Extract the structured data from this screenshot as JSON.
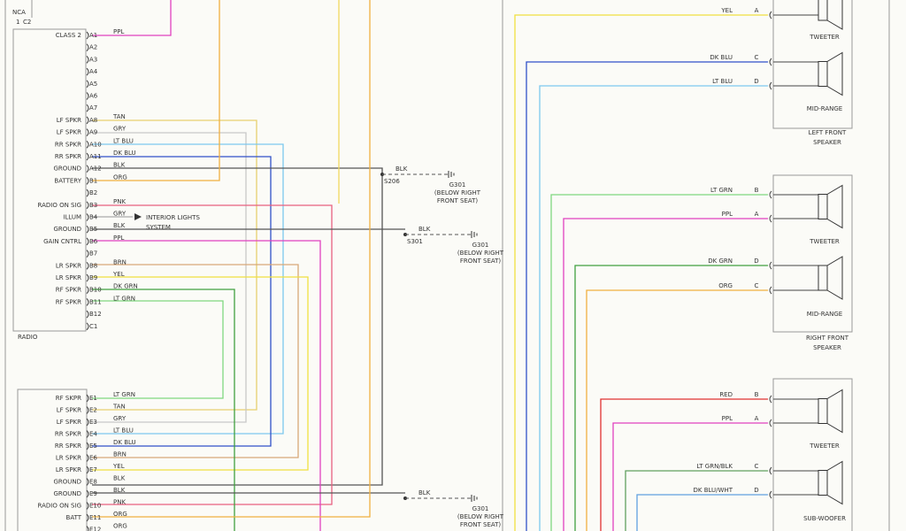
{
  "connector_top": {
    "label": "NCA",
    "pin": "1",
    "connector": "C2"
  },
  "radio": {
    "label": "RADIO",
    "pins": [
      {
        "function": "CLASS 2",
        "pin": "A1",
        "wire": "PPL"
      },
      {
        "pin": "A2"
      },
      {
        "pin": "A3"
      },
      {
        "pin": "A4"
      },
      {
        "pin": "A5"
      },
      {
        "pin": "A6"
      },
      {
        "pin": "A7"
      },
      {
        "function": "LF SPKR",
        "pin": "A8",
        "wire": "TAN"
      },
      {
        "function": "LF SPKR",
        "pin": "A9",
        "wire": "GRY"
      },
      {
        "function": "RR SPKR",
        "pin": "A10",
        "wire": "LT BLU"
      },
      {
        "function": "RR SPKR",
        "pin": "A11",
        "wire": "DK BLU"
      },
      {
        "function": "GROUND",
        "pin": "A12",
        "wire": "BLK"
      },
      {
        "function": "BATTERY",
        "pin": "B1",
        "wire": "ORG"
      },
      {
        "pin": "B2"
      },
      {
        "function": "RADIO ON SIG",
        "pin": "B3",
        "wire": "PNK"
      },
      {
        "function": "ILLUM",
        "pin": "B4",
        "wire": "GRY"
      },
      {
        "function": "GROUND",
        "pin": "B5",
        "wire": "BLK"
      },
      {
        "function": "GAIN CNTRL",
        "pin": "B6",
        "wire": "PPL"
      },
      {
        "pin": "B7"
      },
      {
        "function": "LR SPKR",
        "pin": "B8",
        "wire": "BRN"
      },
      {
        "function": "LR SPKR",
        "pin": "B9",
        "wire": "YEL"
      },
      {
        "function": "RF SPKR",
        "pin": "B10",
        "wire": "DK GRN"
      },
      {
        "function": "RF SPKR",
        "pin": "B11",
        "wire": "LT GRN"
      },
      {
        "pin": "B12"
      },
      {
        "pin": "C1"
      }
    ]
  },
  "amplifier": {
    "pins": [
      {
        "function": "RF SKPR",
        "pin": "E1",
        "wire": "LT GRN"
      },
      {
        "function": "LF SPKR",
        "pin": "E2",
        "wire": "TAN"
      },
      {
        "function": "LF SPKR",
        "pin": "E3",
        "wire": "GRY"
      },
      {
        "function": "RR SPKR",
        "pin": "E4",
        "wire": "LT BLU"
      },
      {
        "function": "RR SPKR",
        "pin": "E5",
        "wire": "DK BLU"
      },
      {
        "function": "LR SPKR",
        "pin": "E6",
        "wire": "BRN"
      },
      {
        "function": "LR SPKR",
        "pin": "E7",
        "wire": "YEL"
      },
      {
        "function": "GROUND",
        "pin": "E8",
        "wire": "BLK"
      },
      {
        "function": "GROUND",
        "pin": "E9",
        "wire": "BLK"
      },
      {
        "function": "RADIO ON SIG",
        "pin": "E10",
        "wire": "PNK"
      },
      {
        "function": "BATT",
        "pin": "E11",
        "wire": "ORG"
      },
      {
        "pin": "E12",
        "wire": "ORG"
      }
    ]
  },
  "interior_lights": [
    "INTERIOR LIGHTS",
    "SYSTEM"
  ],
  "grounds": [
    {
      "wire": "BLK",
      "splice": "S206",
      "ground": "G301",
      "location": [
        "(BELOW RIGHT",
        "FRONT SEAT)"
      ]
    },
    {
      "wire": "BLK",
      "splice": "S301",
      "ground": "G301",
      "location": [
        "(BELOW RIGHT",
        "FRONT SEAT)"
      ]
    },
    {
      "wire": "BLK",
      "ground": "G301",
      "location": [
        "(BELOW RIGHT",
        "FRONT SEAT)"
      ]
    }
  ],
  "speakers": [
    {
      "label": [
        "LEFT FRONT",
        "SPEAKER"
      ],
      "units": [
        {
          "name": "TWEETER",
          "terminals": [
            {
              "wire": "YEL",
              "pin": "A"
            }
          ]
        },
        {
          "name": "MID-RANGE",
          "terminals": [
            {
              "wire": "DK BLU",
              "pin": "C"
            },
            {
              "wire": "LT BLU",
              "pin": "D"
            }
          ]
        }
      ]
    },
    {
      "label": [
        "RIGHT FRONT",
        "SPEAKER"
      ],
      "units": [
        {
          "name": "TWEETER",
          "terminals": [
            {
              "wire": "LT GRN",
              "pin": "B"
            },
            {
              "wire": "PPL",
              "pin": "A"
            }
          ]
        },
        {
          "name": "MID-RANGE",
          "terminals": [
            {
              "wire": "DK GRN",
              "pin": "D"
            },
            {
              "wire": "ORG",
              "pin": "C"
            }
          ]
        }
      ]
    },
    {
      "units": [
        {
          "name": "TWEETER",
          "terminals": [
            {
              "wire": "RED",
              "pin": "B"
            },
            {
              "wire": "PPL",
              "pin": "A"
            }
          ]
        },
        {
          "name": "SUB-WOOFER",
          "terminals": [
            {
              "wire": "LT GRN/BLK",
              "pin": "C"
            },
            {
              "wire": "DK BLU/WHT",
              "pin": "D"
            }
          ]
        }
      ]
    }
  ]
}
